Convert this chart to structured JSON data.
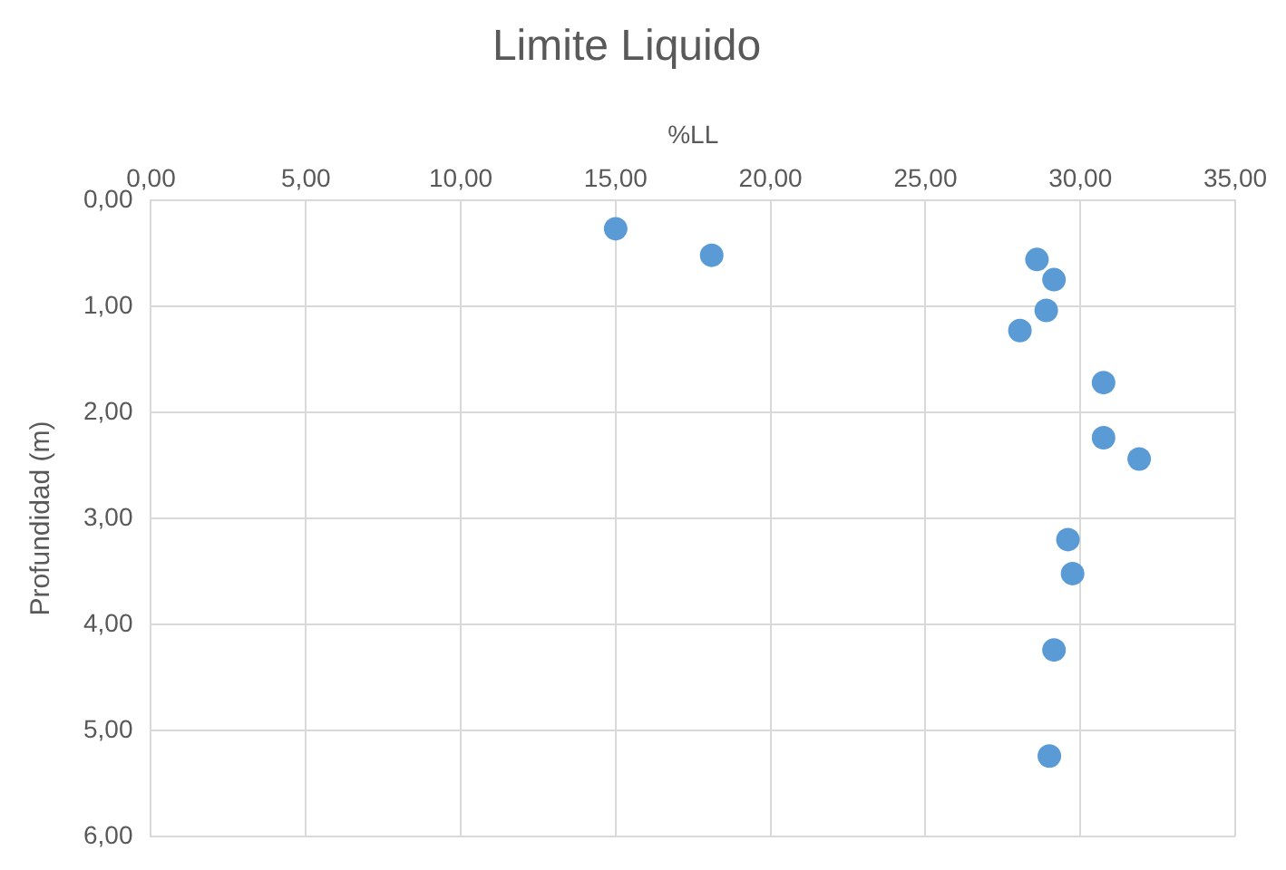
{
  "chart_data": {
    "type": "scatter",
    "title": "Limite Liquido",
    "xlabel": "%LL",
    "ylabel": "Profundidad (m)",
    "series": [
      {
        "color": "#5b9bd5",
        "x": [
          15.0,
          18.1,
          28.6,
          29.15,
          28.9,
          28.05,
          30.75,
          30.75,
          31.9,
          29.6,
          29.75,
          29.15,
          29.0
        ],
        "values": [
          0.27,
          0.52,
          0.56,
          0.75,
          1.04,
          1.23,
          1.72,
          2.24,
          2.44,
          3.2,
          3.52,
          4.24,
          5.24
        ]
      }
    ],
    "xlim": [
      0,
      35
    ],
    "xticks": [
      {
        "value": 0,
        "label": "0,00"
      },
      {
        "value": 5,
        "label": "5,00"
      },
      {
        "value": 10,
        "label": "10,00"
      },
      {
        "value": 15,
        "label": "15,00"
      },
      {
        "value": 20,
        "label": "20,00"
      },
      {
        "value": 25,
        "label": "25,00"
      },
      {
        "value": 30,
        "label": "30,00"
      },
      {
        "value": 35,
        "label": "35,00"
      }
    ],
    "ylim": [
      6,
      0
    ],
    "yticks": [
      {
        "value": 0,
        "label": "0,00"
      },
      {
        "value": 1,
        "label": "1,00"
      },
      {
        "value": 2,
        "label": "2,00"
      },
      {
        "value": 3,
        "label": "3,00"
      },
      {
        "value": 4,
        "label": "4,00"
      },
      {
        "value": 5,
        "label": "5,00"
      },
      {
        "value": 6,
        "label": "6,00"
      }
    ],
    "grid": true,
    "marker": "circle"
  }
}
